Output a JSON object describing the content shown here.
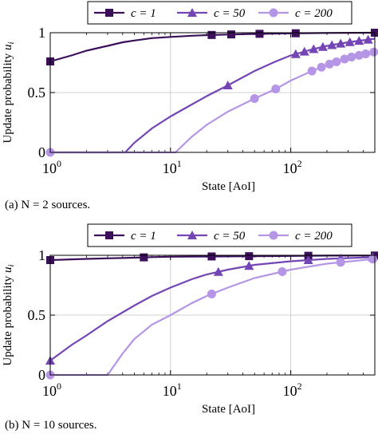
{
  "chart_data": [
    {
      "type": "line",
      "caption": "(a)  N = 2 sources.",
      "xlabel": "State [AoI]",
      "ylabel": "Update probability u_i",
      "xscale": "log",
      "xlim": [
        1,
        500
      ],
      "ylim": [
        0,
        1
      ],
      "x_ticks": [
        "10^0",
        "10^1",
        "10^2"
      ],
      "y_ticks": [
        "0",
        "0.5",
        "1"
      ],
      "grid": true,
      "legend_position": "top",
      "series": [
        {
          "name": "c = 1",
          "color": "#3b0f5a",
          "marker": "square",
          "x": [
            1,
            1.5,
            2,
            3,
            4,
            5,
            7,
            10,
            15,
            20,
            30,
            50,
            100,
            200,
            500
          ],
          "y": [
            0.76,
            0.81,
            0.85,
            0.89,
            0.92,
            0.935,
            0.955,
            0.965,
            0.975,
            0.98,
            0.985,
            0.99,
            0.995,
            0.998,
            1.0
          ],
          "marker_x": [
            1,
            22,
            32,
            55,
            110,
            500
          ]
        },
        {
          "name": "c = 50",
          "color": "#7445b4",
          "marker": "triangle",
          "x": [
            1,
            4.2,
            5,
            7,
            10,
            15,
            20,
            30,
            50,
            75,
            100,
            150,
            200,
            300,
            500
          ],
          "y": [
            0,
            0,
            0.08,
            0.2,
            0.3,
            0.4,
            0.47,
            0.56,
            0.68,
            0.76,
            0.81,
            0.86,
            0.89,
            0.92,
            0.95
          ],
          "marker_x": [
            30,
            110,
            130,
            155,
            185,
            220,
            260,
            310,
            370,
            440
          ]
        },
        {
          "name": "c = 200",
          "color": "#b495e6",
          "marker": "circle",
          "x": [
            1,
            11,
            15,
            20,
            30,
            50,
            75,
            100,
            150,
            200,
            300,
            500
          ],
          "y": [
            0,
            0,
            0.13,
            0.23,
            0.34,
            0.45,
            0.53,
            0.6,
            0.68,
            0.73,
            0.79,
            0.84
          ],
          "marker_x": [
            1,
            50,
            75,
            150,
            180,
            210,
            240,
            280,
            320,
            370,
            420,
            490
          ]
        }
      ]
    },
    {
      "type": "line",
      "caption": "(b)  N = 10 sources.",
      "xlabel": "State [AoI]",
      "ylabel": "Update probability u_i",
      "xscale": "log",
      "xlim": [
        1,
        500
      ],
      "ylim": [
        0,
        1
      ],
      "x_ticks": [
        "10^0",
        "10^1",
        "10^2"
      ],
      "y_ticks": [
        "0",
        "0.5",
        "1"
      ],
      "grid": true,
      "legend_position": "top",
      "series": [
        {
          "name": "c = 1",
          "color": "#3b0f5a",
          "marker": "square",
          "x": [
            1,
            2,
            3,
            5,
            7,
            10,
            20,
            50,
            100,
            200,
            500
          ],
          "y": [
            0.96,
            0.97,
            0.975,
            0.98,
            0.985,
            0.988,
            0.99,
            0.993,
            0.995,
            0.997,
            0.998
          ],
          "marker_x": [
            1,
            6,
            22,
            45,
            140,
            500
          ]
        },
        {
          "name": "c = 50",
          "color": "#7445b4",
          "marker": "triangle",
          "x": [
            1,
            1.5,
            2,
            3,
            5,
            7,
            10,
            15,
            20,
            30,
            50,
            100,
            200,
            500
          ],
          "y": [
            0.12,
            0.25,
            0.33,
            0.45,
            0.58,
            0.66,
            0.73,
            0.8,
            0.84,
            0.88,
            0.92,
            0.95,
            0.97,
            0.985
          ],
          "marker_x": [
            1,
            25,
            45,
            140,
            260,
            480
          ]
        },
        {
          "name": "c = 200",
          "color": "#b495e6",
          "marker": "circle",
          "x": [
            1,
            3,
            4,
            5,
            7,
            10,
            15,
            20,
            30,
            50,
            100,
            200,
            500
          ],
          "y": [
            0,
            0,
            0.18,
            0.3,
            0.42,
            0.5,
            0.6,
            0.66,
            0.73,
            0.81,
            0.88,
            0.93,
            0.97
          ],
          "marker_x": [
            1,
            22,
            85,
            260,
            480
          ]
        }
      ]
    }
  ]
}
